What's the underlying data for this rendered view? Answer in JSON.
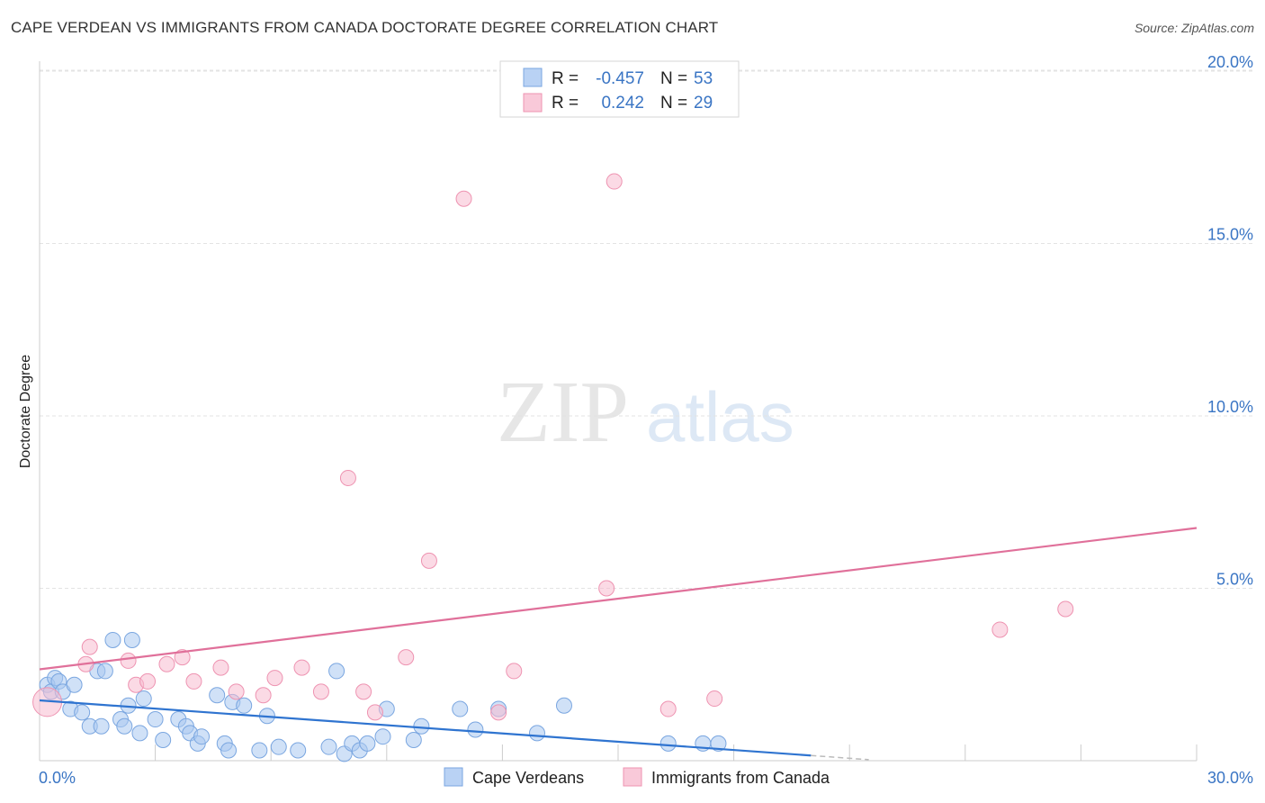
{
  "title": "CAPE VERDEAN VS IMMIGRANTS FROM CANADA DOCTORATE DEGREE CORRELATION CHART",
  "source": "Source: ZipAtlas.com",
  "watermark": {
    "zip": "ZIP",
    "atlas": "atlas"
  },
  "colors": {
    "blue_fill": "#a9c8f0",
    "blue_stroke": "#7aa6e0",
    "blue_line": "#2f74d0",
    "pink_fill": "#f7bcd0",
    "pink_stroke": "#ee93b1",
    "pink_line": "#e0709a",
    "grid": "#e3e3e3",
    "tick_text": "#3a75c4"
  },
  "legend": {
    "r_label": "R =",
    "n_label": "N =",
    "series1": {
      "r": "-0.457",
      "n": "53"
    },
    "series2": {
      "r": "0.242",
      "n": "29"
    }
  },
  "chart_data": {
    "type": "scatter",
    "title": "CAPE VERDEAN VS IMMIGRANTS FROM CANADA DOCTORATE DEGREE CORRELATION CHART",
    "xlabel": "",
    "ylabel": "Doctorate Degree",
    "xlim": [
      0,
      30
    ],
    "ylim": [
      0,
      21
    ],
    "x_ticks": [
      {
        "value": 0,
        "label": "0.0%"
      },
      {
        "value": 30,
        "label": "30.0%"
      }
    ],
    "y_ticks": [
      {
        "value": 5,
        "label": "5.0%"
      },
      {
        "value": 10,
        "label": "10.0%"
      },
      {
        "value": 15,
        "label": "15.0%"
      },
      {
        "value": 20,
        "label": "20.0%"
      }
    ],
    "series": [
      {
        "name": "Cape Verdeans",
        "color": "blue",
        "trend": {
          "x0": 0,
          "y0": 1.75,
          "x1": 20,
          "y1": 0.15,
          "dash_to_x": 21.5
        },
        "points": [
          [
            0.2,
            2.2
          ],
          [
            0.3,
            2.0
          ],
          [
            0.4,
            2.4
          ],
          [
            0.5,
            2.3
          ],
          [
            0.6,
            2.0
          ],
          [
            0.8,
            1.5
          ],
          [
            0.9,
            2.2
          ],
          [
            1.1,
            1.4
          ],
          [
            1.3,
            1.0
          ],
          [
            1.5,
            2.6
          ],
          [
            1.6,
            1.0
          ],
          [
            1.7,
            2.6
          ],
          [
            1.9,
            3.5
          ],
          [
            2.1,
            1.2
          ],
          [
            2.2,
            1.0
          ],
          [
            2.3,
            1.6
          ],
          [
            2.4,
            3.5
          ],
          [
            2.6,
            0.8
          ],
          [
            2.7,
            1.8
          ],
          [
            3.0,
            1.2
          ],
          [
            3.2,
            0.6
          ],
          [
            3.6,
            1.2
          ],
          [
            3.8,
            1.0
          ],
          [
            3.9,
            0.8
          ],
          [
            4.1,
            0.5
          ],
          [
            4.2,
            0.7
          ],
          [
            4.6,
            1.9
          ],
          [
            4.8,
            0.5
          ],
          [
            4.9,
            0.3
          ],
          [
            5.0,
            1.7
          ],
          [
            5.3,
            1.6
          ],
          [
            5.7,
            0.3
          ],
          [
            5.9,
            1.3
          ],
          [
            6.2,
            0.4
          ],
          [
            6.7,
            0.3
          ],
          [
            7.5,
            0.4
          ],
          [
            7.7,
            2.6
          ],
          [
            7.9,
            0.2
          ],
          [
            8.1,
            0.5
          ],
          [
            8.3,
            0.3
          ],
          [
            8.5,
            0.5
          ],
          [
            8.9,
            0.7
          ],
          [
            9.0,
            1.5
          ],
          [
            9.7,
            0.6
          ],
          [
            9.9,
            1.0
          ],
          [
            10.9,
            1.5
          ],
          [
            11.3,
            0.9
          ],
          [
            11.9,
            1.5
          ],
          [
            12.9,
            0.8
          ],
          [
            13.6,
            1.6
          ],
          [
            16.3,
            0.5
          ],
          [
            17.2,
            0.5
          ],
          [
            17.6,
            0.5
          ]
        ]
      },
      {
        "name": "Immigrants from Canada",
        "color": "pink",
        "trend": {
          "x0": 0,
          "y0": 2.65,
          "x1": 30,
          "y1": 6.75
        },
        "points": [
          [
            0.2,
            1.7
          ],
          [
            1.2,
            2.8
          ],
          [
            1.3,
            3.3
          ],
          [
            2.3,
            2.9
          ],
          [
            2.5,
            2.2
          ],
          [
            2.8,
            2.3
          ],
          [
            3.3,
            2.8
          ],
          [
            3.7,
            3.0
          ],
          [
            4.0,
            2.3
          ],
          [
            4.7,
            2.7
          ],
          [
            5.1,
            2.0
          ],
          [
            5.8,
            1.9
          ],
          [
            6.1,
            2.4
          ],
          [
            6.8,
            2.7
          ],
          [
            7.3,
            2.0
          ],
          [
            8.0,
            8.2
          ],
          [
            8.4,
            2.0
          ],
          [
            8.7,
            1.4
          ],
          [
            9.5,
            3.0
          ],
          [
            10.1,
            5.8
          ],
          [
            11.0,
            16.3
          ],
          [
            11.9,
            1.4
          ],
          [
            12.3,
            2.6
          ],
          [
            14.7,
            5.0
          ],
          [
            14.9,
            16.8
          ],
          [
            16.3,
            1.5
          ],
          [
            17.5,
            1.8
          ],
          [
            24.9,
            3.8
          ],
          [
            26.6,
            4.4
          ]
        ]
      }
    ]
  },
  "bottom_legend": {
    "item1": "Cape Verdeans",
    "item2": "Immigrants from Canada"
  }
}
